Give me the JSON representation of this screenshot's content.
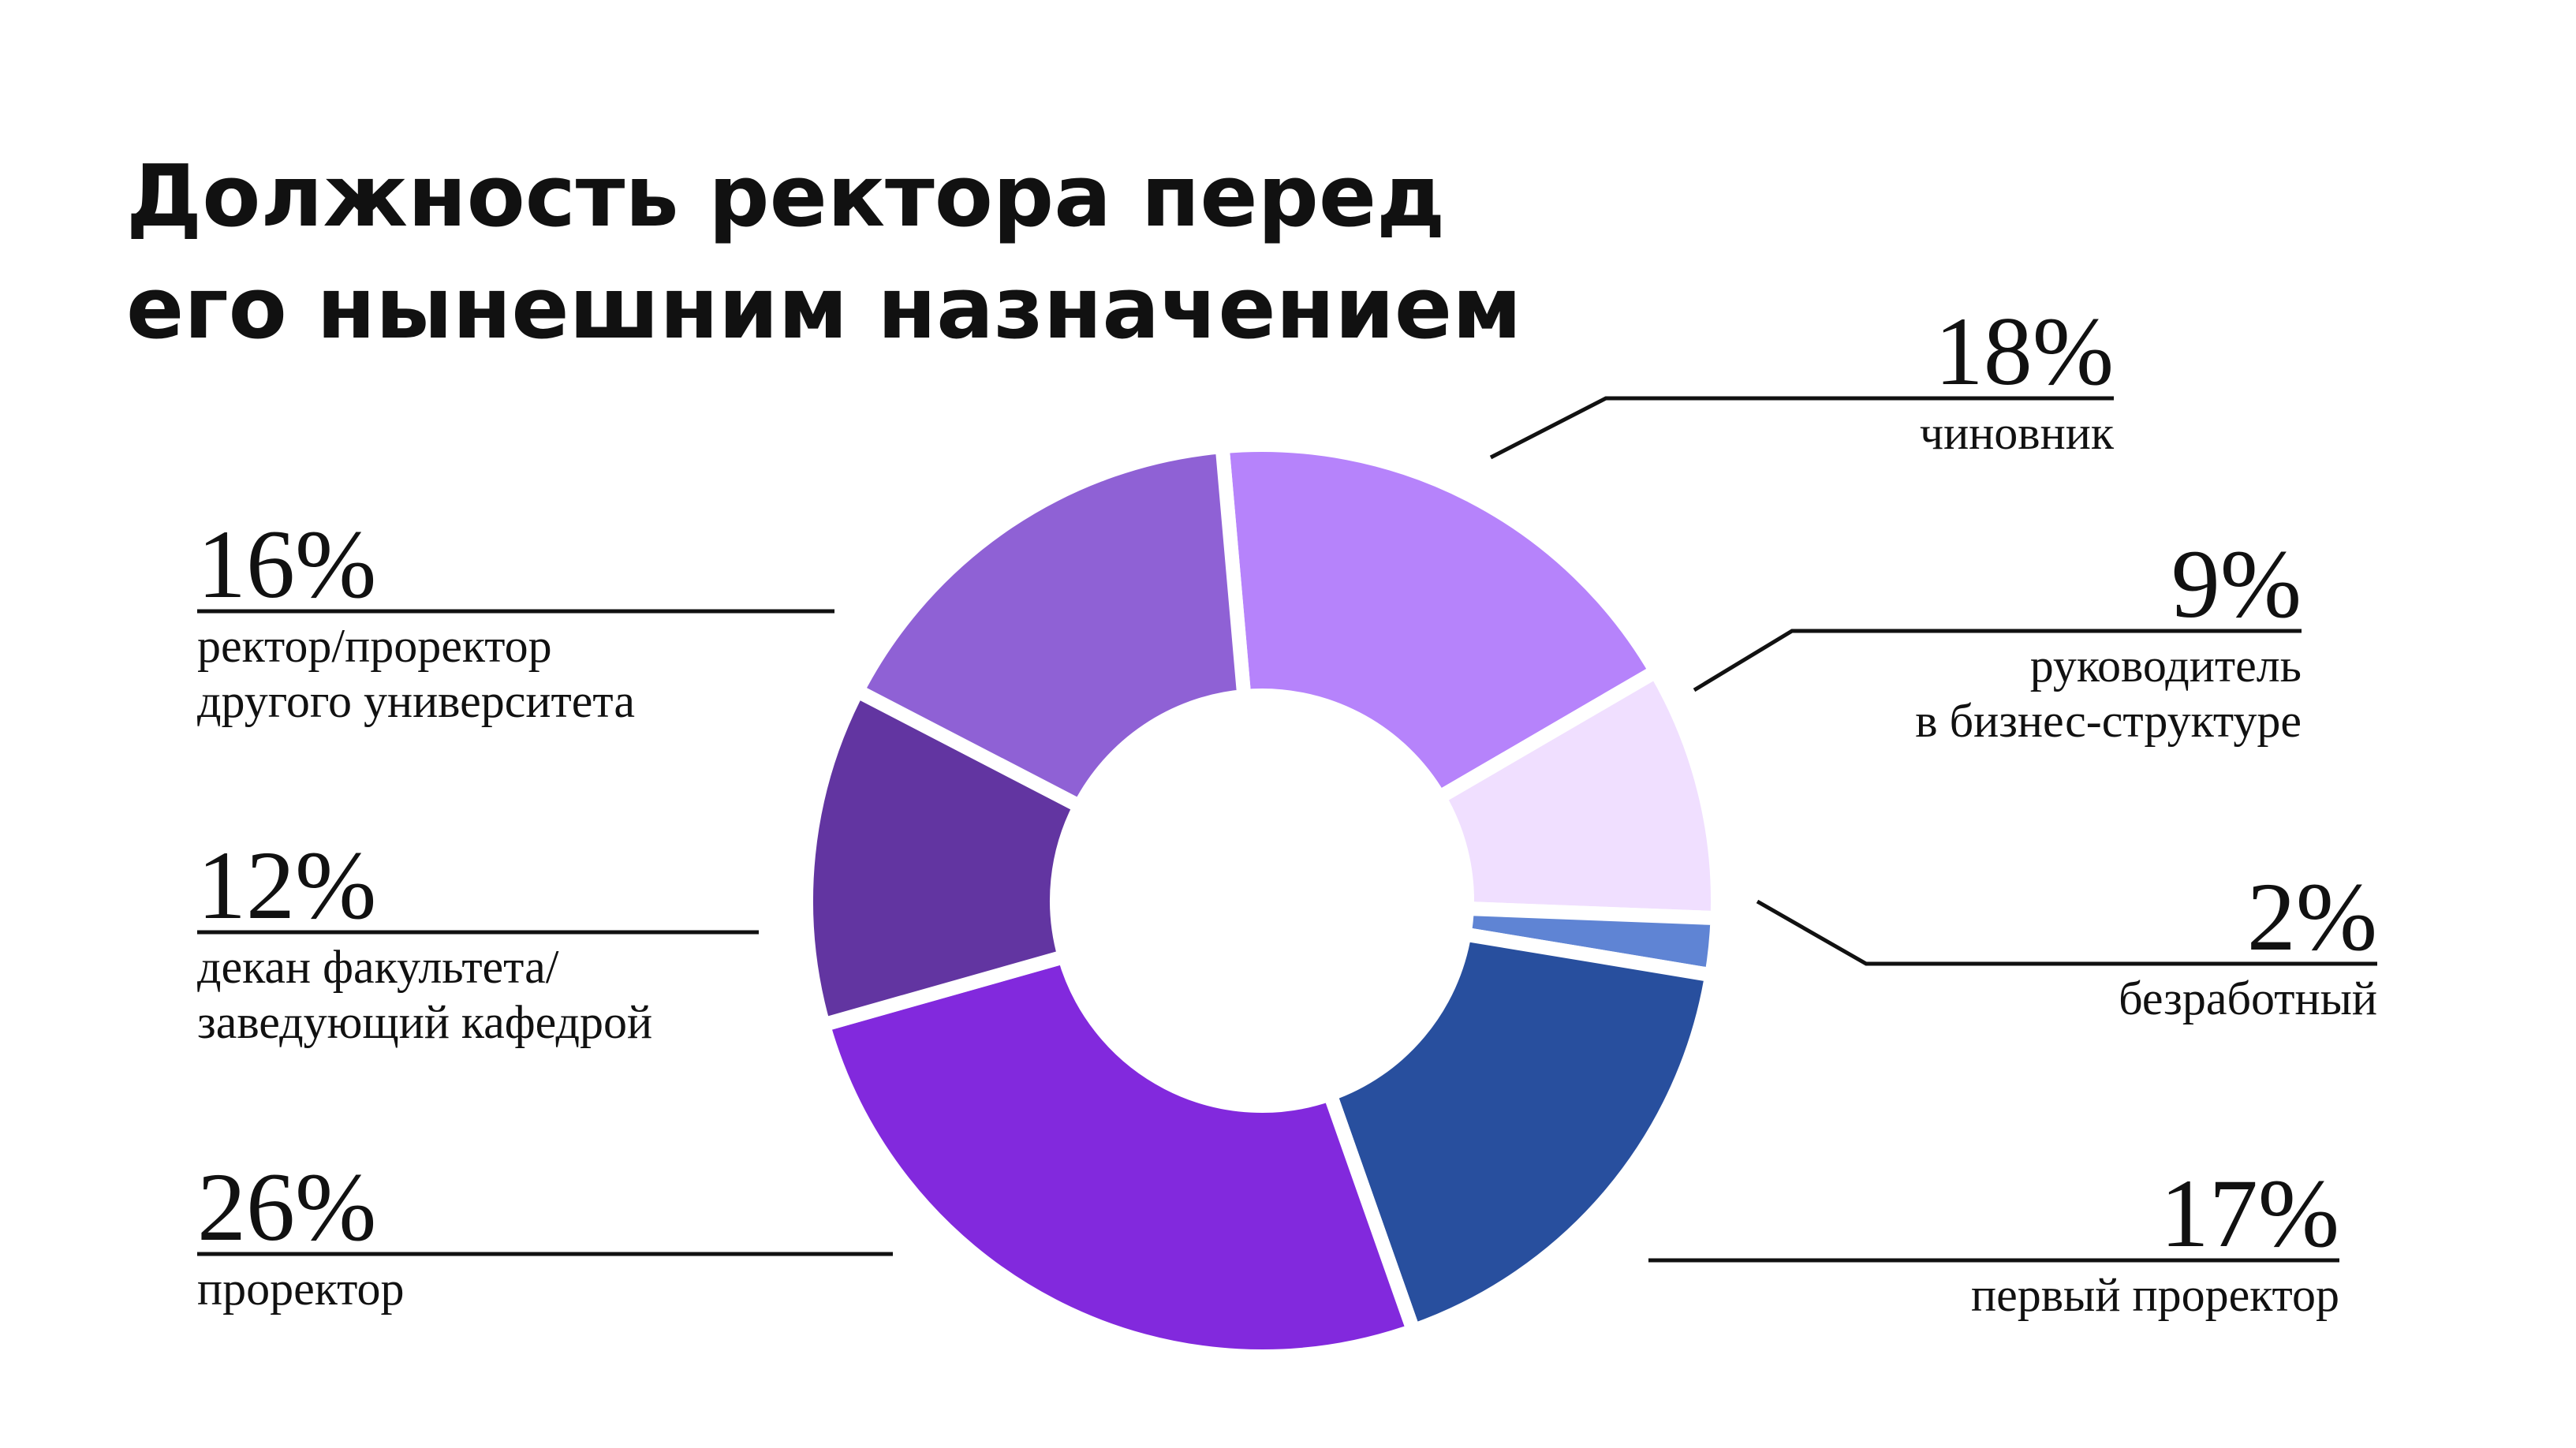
{
  "chart_data": {
    "type": "pie",
    "title": [
      "Должность ректора перед",
      "его нынешним назначением"
    ],
    "categories": [
      "чиновник",
      "руководитель в бизнес-структуре",
      "безработный",
      "первый проректор",
      "проректор",
      "декан факультета/заведующий кафедрой",
      "ректор/проректор другого университета"
    ],
    "values": [
      18,
      9,
      2,
      17,
      26,
      12,
      16
    ],
    "value_labels": [
      "18%",
      "9%",
      "2%",
      "17%",
      "26%",
      "12%",
      "16%"
    ],
    "label_lines": [
      [
        "чиновник"
      ],
      [
        "руководитель",
        "в бизнес-структуре"
      ],
      [
        "безработный"
      ],
      [
        "первый проректор"
      ],
      [
        "проректор"
      ],
      [
        "декан факультета/",
        "заведующий кафедрой"
      ],
      [
        "ректор/проректор",
        "другого университета"
      ]
    ],
    "colors": [
      "#b683fb",
      "#f0dfff",
      "#5f84d4",
      "#284f9e",
      "#8229dd",
      "#6235a1",
      "#8f61d5"
    ],
    "donut": true,
    "legend": "none"
  }
}
